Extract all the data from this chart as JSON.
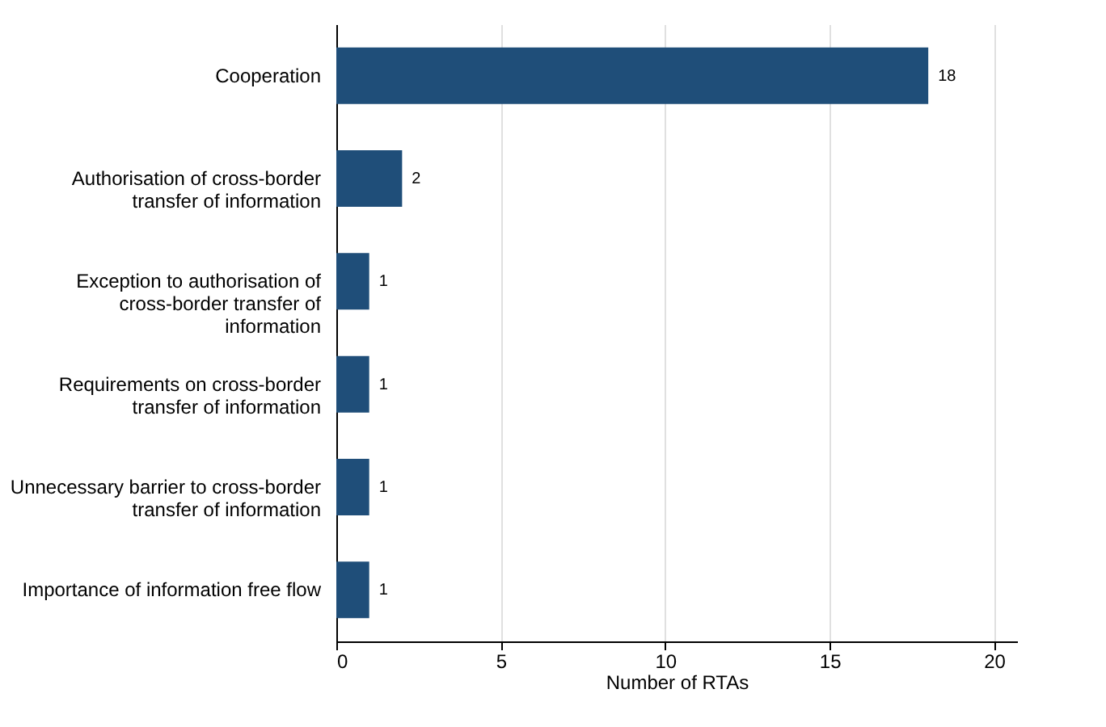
{
  "chart_data": {
    "type": "bar",
    "orientation": "horizontal",
    "xlabel": "Number of RTAs",
    "categories": [
      "Cooperation",
      "Authorisation of cross-border\ntransfer of information",
      "Exception to authorisation of\ncross-border transfer of\ninformation",
      "Requirements on cross-border\ntransfer of information",
      "Unnecessary barrier to cross-border\ntransfer of information",
      "Importance of information free flow"
    ],
    "values": [
      18,
      2,
      1,
      1,
      1,
      1
    ],
    "color": "#1f4e79",
    "data_labels": true,
    "xlim": [
      0,
      20.7
    ],
    "xticks": [
      0,
      5,
      10,
      15,
      20
    ],
    "grid": "x"
  }
}
